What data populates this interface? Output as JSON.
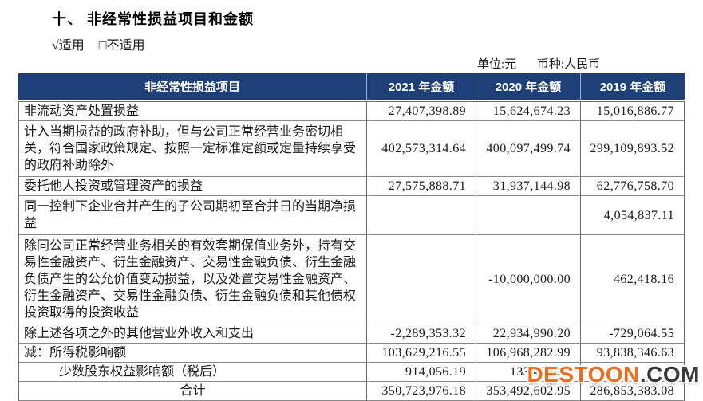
{
  "document": {
    "section_title": "十、 非经常性损益项目和金额",
    "applicable_option": "√适用",
    "not_applicable_option": "□不适用",
    "unit_label": "单位:元",
    "currency_label": "币种:人民币"
  },
  "table": {
    "columns": [
      "非经常性损益项目",
      "2021 年金额",
      "2020 年金额",
      "2019 年金额"
    ],
    "rows": [
      {
        "item": "非流动资产处置损益",
        "y2021": "27,407,398.89",
        "y2020": "15,624,674.23",
        "y2019": "15,016,886.77"
      },
      {
        "item": "计入当期损益的政府补助，但与公司正常经营业务密切相关，符合国家政策规定、按照一定标准定额或定量持续享受的政府补助除外",
        "y2021": "402,573,314.64",
        "y2020": "400,097,499.74",
        "y2019": "299,109,893.52"
      },
      {
        "item": "委托他人投资或管理资产的损益",
        "y2021": "27,575,888.71",
        "y2020": "31,937,144.98",
        "y2019": "62,776,758.70"
      },
      {
        "item": "同一控制下企业合并产生的子公司期初至合并日的当期净损益",
        "y2021": "",
        "y2020": "",
        "y2019": "4,054,837.11"
      },
      {
        "item": "除同公司正常经营业务相关的有效套期保值业务外，持有交易性金融资产、衍生金融资产、交易性金融负债、衍生金融负债产生的公允价值变动损益，以及处置交易性金融资产、衍生金融资产、交易性金融负债、衍生金融负债和其他债权投资取得的投资收益",
        "y2021": "",
        "y2020": "-10,000,000.00",
        "y2019": "462,418.16"
      },
      {
        "item": "除上述各项之外的其他营业外收入和支出",
        "y2021": "-2,289,353.32",
        "y2020": "22,934,990.20",
        "y2019": "-729,064.55"
      },
      {
        "item": "减：所得税影响额",
        "y2021": "103,629,216.55",
        "y2020": "106,968,282.99",
        "y2019": "93,838,346.63"
      },
      {
        "item": "少数股东权益影响额（税后）",
        "y2021": "914,056.19",
        "y2020": "133,423.21",
        "y2019": ""
      },
      {
        "item": "合计",
        "y2021": "350,723,976.18",
        "y2020": "353,492,602.95",
        "y2019": "286,853,383.08"
      }
    ]
  },
  "watermark": {
    "brand": "DESTOON",
    "suffix": ".COM",
    "brand_color": "#f26c1d",
    "suffix_color": "#3a3a3a"
  },
  "colors": {
    "header_background": "#1e3f78",
    "header_text": "#ffffff",
    "body_border": "#6a6a6a"
  }
}
